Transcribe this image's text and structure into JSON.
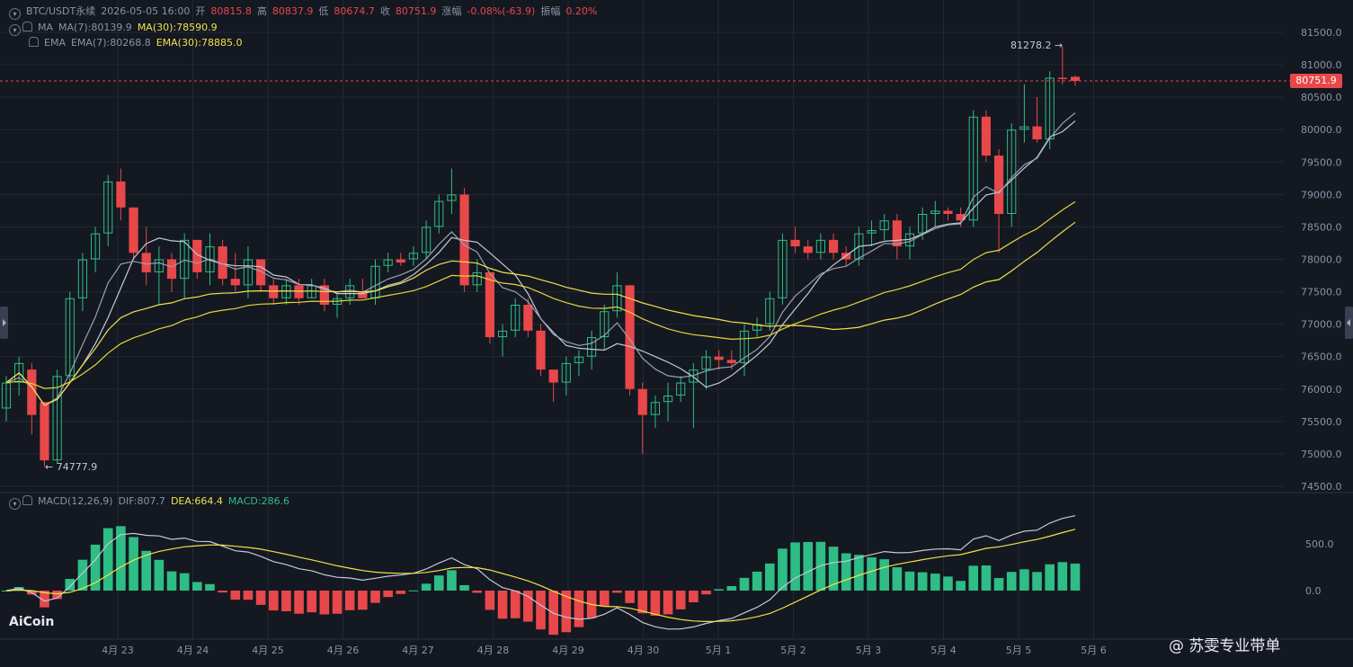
{
  "header": {
    "symbol": "BTC/USDT永续",
    "datetime": "2026-05-05 16:00",
    "open_label": "开",
    "open": "80815.8",
    "high_label": "高",
    "high": "80837.9",
    "low_label": "低",
    "low": "80674.7",
    "close_label": "收",
    "close": "80751.9",
    "change_label": "涨幅",
    "change": "-0.08%(-63.9)",
    "amp_label": "振幅",
    "amp": "0.20%"
  },
  "ma_row": {
    "name": "MA",
    "ma7": "MA(7):80139.9",
    "ma30": "MA(30):78590.9"
  },
  "ema_row": {
    "name": "EMA",
    "ema7": "EMA(7):80268.8",
    "ema30": "EMA(30):78885.0"
  },
  "macd_row": {
    "name": "MACD(12,26,9)",
    "dif": "DIF:807.7",
    "dea": "DEA:664.4",
    "macd": "MACD:286.6"
  },
  "annotations": {
    "high_mark": "81278.2 →",
    "low_mark": "← 74777.9"
  },
  "current_price": "80751.9",
  "price_axis": [
    "81500.0",
    "81000.0",
    "80500.0",
    "80000.0",
    "79500.0",
    "79000.0",
    "78500.0",
    "78000.0",
    "77500.0",
    "77000.0",
    "76500.0",
    "76000.0",
    "75500.0",
    "75000.0",
    "74500.0"
  ],
  "macd_axis": [
    "500.0",
    "0.0"
  ],
  "date_axis": [
    "4月 23",
    "4月 24",
    "4月 25",
    "4月 26",
    "4月 27",
    "4月 28",
    "4月 29",
    "4月 30",
    "5月 1",
    "5月 2",
    "5月 3",
    "5月 4",
    "5月 5",
    "5月 6"
  ],
  "logo_text": "AiCoin",
  "watermark": "@ 苏雯专业带单",
  "colors": {
    "up": "#2ebd85",
    "down": "#e8484a",
    "ma_yellow": "#f2e14a",
    "ma_white": "#c4c9d6",
    "background": "#141821",
    "grid": "#222836"
  },
  "chart_data": {
    "type": "candlestick",
    "interval": "1h candles shown as ~4h bars",
    "price_range": [
      74400,
      81700
    ],
    "candles": [
      [
        75700,
        76200,
        75500,
        76100
      ],
      [
        76100,
        76500,
        75900,
        76400
      ],
      [
        76300,
        76400,
        75300,
        75600
      ],
      [
        75800,
        75800,
        74800,
        74900
      ],
      [
        74900,
        76300,
        74850,
        76200
      ],
      [
        76200,
        77500,
        76100,
        77400
      ],
      [
        77400,
        78100,
        77200,
        78000
      ],
      [
        78000,
        78500,
        77800,
        78400
      ],
      [
        78400,
        79300,
        78200,
        79200
      ],
      [
        79200,
        79400,
        78600,
        78800
      ],
      [
        78800,
        78800,
        78000,
        78100
      ],
      [
        78100,
        78500,
        77600,
        77800
      ],
      [
        77800,
        78200,
        77300,
        78000
      ],
      [
        78000,
        78100,
        77500,
        77700
      ],
      [
        77700,
        78400,
        77400,
        78300
      ],
      [
        78300,
        78300,
        77700,
        77800
      ],
      [
        77800,
        78400,
        77600,
        78200
      ],
      [
        78200,
        78300,
        77600,
        77700
      ],
      [
        77700,
        78100,
        77500,
        77600
      ],
      [
        77600,
        78200,
        77400,
        78000
      ],
      [
        78000,
        78000,
        77500,
        77600
      ],
      [
        77600,
        77700,
        77300,
        77400
      ],
      [
        77400,
        77700,
        77300,
        77600
      ],
      [
        77600,
        77700,
        77300,
        77400
      ],
      [
        77400,
        77700,
        77400,
        77600
      ],
      [
        77600,
        77700,
        77200,
        77300
      ],
      [
        77300,
        77500,
        77100,
        77400
      ],
      [
        77400,
        77700,
        77300,
        77600
      ],
      [
        77500,
        77700,
        77400,
        77400
      ],
      [
        77400,
        78000,
        77300,
        77900
      ],
      [
        77900,
        78100,
        77800,
        78000
      ],
      [
        78000,
        78100,
        77900,
        77950
      ],
      [
        78000,
        78200,
        77900,
        78100
      ],
      [
        78100,
        78600,
        78000,
        78500
      ],
      [
        78500,
        79000,
        78400,
        78900
      ],
      [
        78900,
        79400,
        78700,
        79000
      ],
      [
        79000,
        79100,
        77500,
        77600
      ],
      [
        77600,
        78000,
        77500,
        77800
      ],
      [
        77800,
        77800,
        76700,
        76800
      ],
      [
        76800,
        77000,
        76500,
        76900
      ],
      [
        76900,
        77400,
        76800,
        77300
      ],
      [
        77300,
        77400,
        76800,
        76900
      ],
      [
        76900,
        77000,
        76200,
        76300
      ],
      [
        76300,
        76300,
        75800,
        76100
      ],
      [
        76100,
        76500,
        75900,
        76400
      ],
      [
        76400,
        76600,
        76200,
        76500
      ],
      [
        76500,
        76900,
        76300,
        76800
      ],
      [
        76800,
        77300,
        76600,
        77200
      ],
      [
        77200,
        77800,
        77100,
        77600
      ],
      [
        77600,
        77600,
        75900,
        76000
      ],
      [
        76000,
        76100,
        75000,
        75600
      ],
      [
        75600,
        75900,
        75400,
        75800
      ],
      [
        75800,
        76100,
        75500,
        75900
      ],
      [
        75900,
        76200,
        75800,
        76100
      ],
      [
        76100,
        76400,
        75400,
        76300
      ],
      [
        76300,
        76600,
        76000,
        76500
      ],
      [
        76500,
        76600,
        76300,
        76450
      ],
      [
        76450,
        76600,
        76300,
        76400
      ],
      [
        76400,
        77000,
        76200,
        76900
      ],
      [
        76900,
        77100,
        76800,
        77000
      ],
      [
        77000,
        77500,
        76900,
        77400
      ],
      [
        77400,
        78400,
        77300,
        78300
      ],
      [
        78300,
        78500,
        78100,
        78200
      ],
      [
        78200,
        78300,
        78000,
        78100
      ],
      [
        78100,
        78400,
        78000,
        78300
      ],
      [
        78300,
        78400,
        78000,
        78100
      ],
      [
        78100,
        78200,
        77900,
        78000
      ],
      [
        78000,
        78500,
        77900,
        78400
      ],
      [
        78400,
        78600,
        78200,
        78450
      ],
      [
        78450,
        78700,
        78300,
        78600
      ],
      [
        78600,
        78700,
        78000,
        78200
      ],
      [
        78200,
        78500,
        78000,
        78400
      ],
      [
        78400,
        78800,
        78300,
        78700
      ],
      [
        78700,
        78900,
        78500,
        78750
      ],
      [
        78750,
        78800,
        78600,
        78700
      ],
      [
        78700,
        78800,
        78500,
        78600
      ],
      [
        78600,
        80300,
        78500,
        80200
      ],
      [
        80200,
        80300,
        79500,
        79600
      ],
      [
        79600,
        79700,
        78100,
        78700
      ],
      [
        78700,
        80100,
        78500,
        80000
      ],
      [
        80000,
        80700,
        79800,
        80050
      ],
      [
        80050,
        80500,
        79800,
        79850
      ],
      [
        79850,
        80900,
        79700,
        80800
      ],
      [
        80800,
        81278,
        80700,
        80780
      ],
      [
        80815,
        80838,
        80675,
        80752
      ]
    ]
  }
}
